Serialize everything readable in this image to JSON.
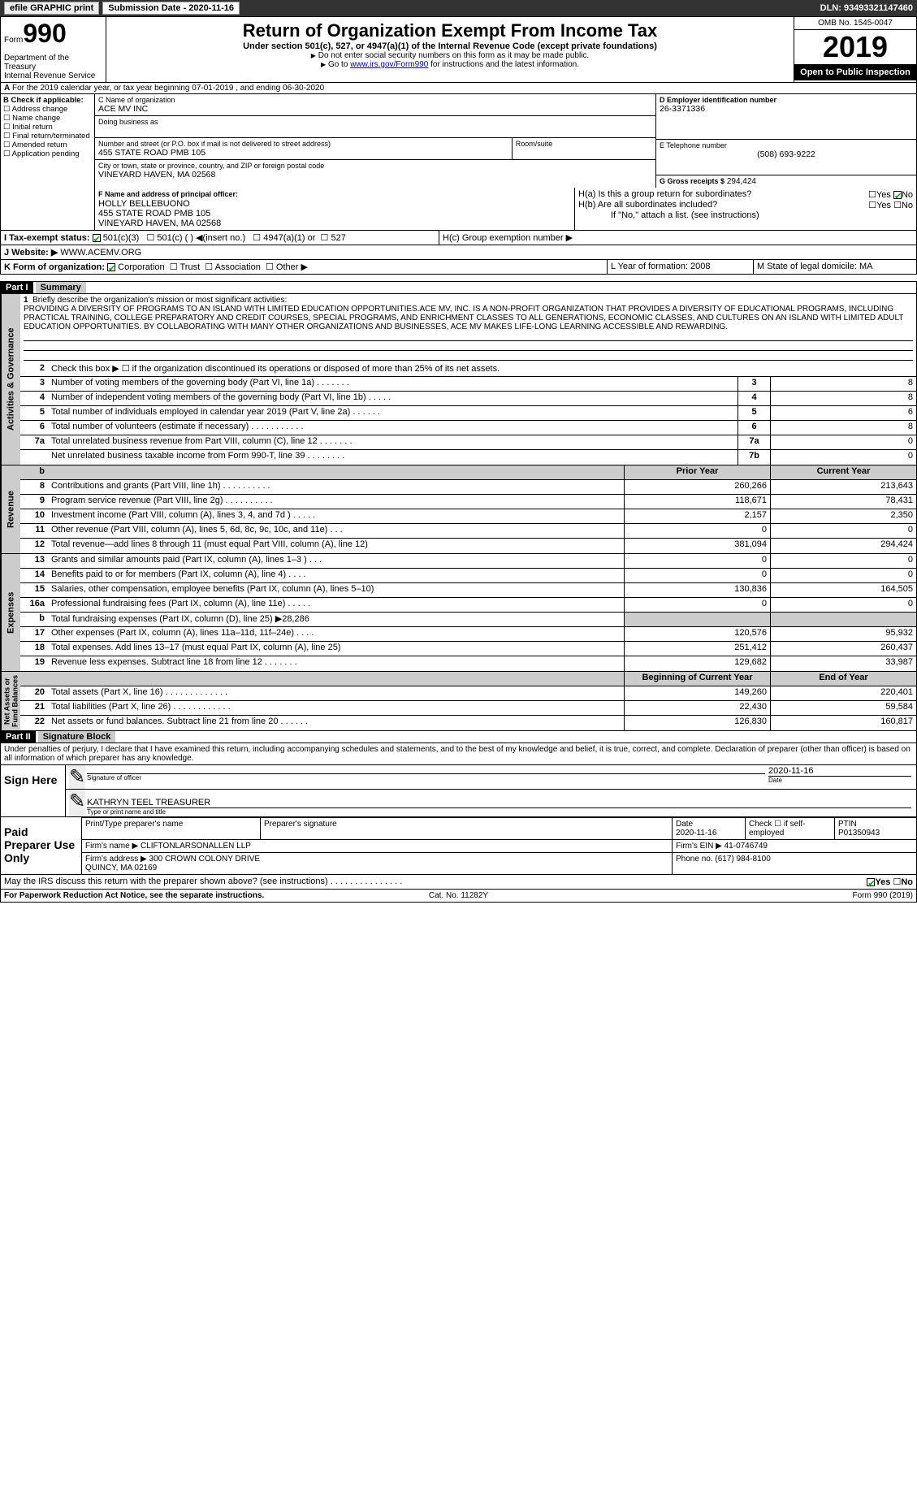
{
  "topbar": {
    "efile_btn": "efile GRAPHIC print",
    "submission": "Submission Date - 2020-11-16",
    "dln": "DLN: 93493321147460"
  },
  "header": {
    "form_small": "Form",
    "form_num": "990",
    "dept": "Department of the Treasury\nInternal Revenue Service",
    "title": "Return of Organization Exempt From Income Tax",
    "subtitle": "Under section 501(c), 527, or 4947(a)(1) of the Internal Revenue Code (except private foundations)",
    "note1": "Do not enter social security numbers on this form as it may be made public.",
    "note2_pre": "Go to ",
    "note2_link": "www.irs.gov/Form990",
    "note2_post": " for instructions and the latest information.",
    "omb": "OMB No. 1545-0047",
    "year": "2019",
    "inspect": "Open to Public Inspection"
  },
  "rowA": "For the 2019 calendar year, or tax year beginning 07-01-2019   , and ending 06-30-2020",
  "colB": {
    "title": "B Check if applicable:",
    "i1": "Address change",
    "i2": "Name change",
    "i3": "Initial return",
    "i4": "Final return/terminated",
    "i5": "Amended return",
    "i6": "Application pending"
  },
  "colC": {
    "name_lbl": "C Name of organization",
    "name": "ACE MV INC",
    "dba_lbl": "Doing business as",
    "addr_lbl": "Number and street (or P.O. box if mail is not delivered to street address)",
    "room_lbl": "Room/suite",
    "addr": "455 STATE ROAD PMB 105",
    "city_lbl": "City or town, state or province, country, and ZIP or foreign postal code",
    "city": "VINEYARD HAVEN, MA  02568",
    "officer_lbl": "F Name and address of principal officer:",
    "officer": "HOLLY BELLEBUONO\n455 STATE ROAD PMB 105\nVINEYARD HAVEN, MA  02568"
  },
  "colD": {
    "ein_lbl": "D Employer identification number",
    "ein": "26-3371336",
    "tel_lbl": "E Telephone number",
    "tel": "(508) 693-9222",
    "gross_lbl": "G Gross receipts $",
    "gross": "294,424"
  },
  "rightH": {
    "ha": "H(a)  Is this a group return for subordinates?",
    "hb": "H(b)  Are all subordinates included?",
    "hb_note": "If \"No,\" attach a list. (see instructions)",
    "hc": "H(c)  Group exemption number ▶",
    "yes": "Yes",
    "no": "No"
  },
  "rowI": {
    "label": "I  Tax-exempt status:",
    "o1": "501(c)(3)",
    "o2": "501(c) (  ) ◀(insert no.)",
    "o3": "4947(a)(1) or",
    "o4": "527"
  },
  "rowJ": {
    "label": "J  Website: ▶",
    "val": "WWW.ACEMV.ORG"
  },
  "rowK": {
    "label": "K Form of organization:",
    "o1": "Corporation",
    "o2": "Trust",
    "o3": "Association",
    "o4": "Other ▶",
    "L": "L Year of formation: 2008",
    "M": "M State of legal domicile: MA"
  },
  "part1": {
    "hdr": "Part I",
    "title": "Summary"
  },
  "mission_lbl": "Briefly describe the organization's mission or most significant activities:",
  "mission": "PROVIDING A DIVERSITY OF PROGRAMS TO AN ISLAND WITH LIMITED EDUCATION OPPORTUNITIES.ACE MV, INC. IS A NON-PROFIT ORGANIZATION THAT PROVIDES A DIVERSITY OF EDUCATIONAL PROGRAMS, INCLUDING PRACTICAL TRAINING, COLLEGE PREPARATORY AND CREDIT COURSES, SPECIAL PROGRAMS, AND ENRICHMENT CLASSES TO ALL GENERATIONS, ECONOMIC CLASSES, AND CULTURES ON AN ISLAND WITH LIMITED ADULT EDUCATION OPPORTUNITIES. BY COLLABORATING WITH MANY OTHER ORGANIZATIONS AND BUSINESSES, ACE MV MAKES LIFE-LONG LEARNING ACCESSIBLE AND REWARDING.",
  "sideA": "Activities & Governance",
  "sideR": "Revenue",
  "sideE": "Expenses",
  "sideN": "Net Assets or\nFund Balances",
  "line2": "Check this box ▶ ☐ if the organization discontinued its operations or disposed of more than 25% of its net assets.",
  "lines_gov": [
    {
      "n": "3",
      "t": "Number of voting members of the governing body (Part VI, line 1a)  .  .  .  .  .  .  .",
      "c": "3",
      "v": "8"
    },
    {
      "n": "4",
      "t": "Number of independent voting members of the governing body (Part VI, line 1b)  .  .  .  .  .",
      "c": "4",
      "v": "8"
    },
    {
      "n": "5",
      "t": "Total number of individuals employed in calendar year 2019 (Part V, line 2a)  .  .  .  .  .  .",
      "c": "5",
      "v": "6"
    },
    {
      "n": "6",
      "t": "Total number of volunteers (estimate if necessary)  .  .  .  .  .  .  .  .  .  .  .",
      "c": "6",
      "v": "8"
    },
    {
      "n": "7a",
      "t": "Total unrelated business revenue from Part VIII, column (C), line 12  .  .  .  .  .  .  .",
      "c": "7a",
      "v": "0"
    },
    {
      "n": " ",
      "t": "Net unrelated business taxable income from Form 990-T, line 39  .  .  .  .  .  .  .  .",
      "c": "7b",
      "v": "0"
    }
  ],
  "hdr_prior": "Prior Year",
  "hdr_curr": "Current Year",
  "lines_rev": [
    {
      "n": "8",
      "t": "Contributions and grants (Part VIII, line 1h)  .  .  .  .  .  .  .  .  .  .",
      "p": "260,266",
      "c": "213,643"
    },
    {
      "n": "9",
      "t": "Program service revenue (Part VIII, line 2g)  .  .  .  .  .  .  .  .  .  .",
      "p": "118,671",
      "c": "78,431"
    },
    {
      "n": "10",
      "t": "Investment income (Part VIII, column (A), lines 3, 4, and 7d )  .  .  .  .  .",
      "p": "2,157",
      "c": "2,350"
    },
    {
      "n": "11",
      "t": "Other revenue (Part VIII, column (A), lines 5, 6d, 8c, 9c, 10c, and 11e)  .  .  .",
      "p": "0",
      "c": "0"
    },
    {
      "n": "12",
      "t": "Total revenue—add lines 8 through 11 (must equal Part VIII, column (A), line 12)",
      "p": "381,094",
      "c": "294,424"
    }
  ],
  "lines_exp": [
    {
      "n": "13",
      "t": "Grants and similar amounts paid (Part IX, column (A), lines 1–3 )  .  .  .",
      "p": "0",
      "c": "0"
    },
    {
      "n": "14",
      "t": "Benefits paid to or for members (Part IX, column (A), line 4)  .  .  .  .",
      "p": "0",
      "c": "0"
    },
    {
      "n": "15",
      "t": "Salaries, other compensation, employee benefits (Part IX, column (A), lines 5–10)",
      "p": "130,836",
      "c": "164,505"
    },
    {
      "n": "16a",
      "t": "Professional fundraising fees (Part IX, column (A), line 11e)  .  .  .  .  .",
      "p": "0",
      "c": "0"
    },
    {
      "n": "b",
      "t": "Total fundraising expenses (Part IX, column (D), line 25) ▶28,286",
      "p": "",
      "c": "",
      "shade": true
    },
    {
      "n": "17",
      "t": "Other expenses (Part IX, column (A), lines 11a–11d, 11f–24e)  .  .  .  .",
      "p": "120,576",
      "c": "95,932"
    },
    {
      "n": "18",
      "t": "Total expenses. Add lines 13–17 (must equal Part IX, column (A), line 25)",
      "p": "251,412",
      "c": "260,437"
    },
    {
      "n": "19",
      "t": "Revenue less expenses. Subtract line 18 from line 12  .  .  .  .  .  .  .",
      "p": "129,682",
      "c": "33,987"
    }
  ],
  "hdr_beg": "Beginning of Current Year",
  "hdr_end": "End of Year",
  "lines_net": [
    {
      "n": "20",
      "t": "Total assets (Part X, line 16)  .  .  .  .  .  .  .  .  .  .  .  .  .",
      "p": "149,260",
      "c": "220,401"
    },
    {
      "n": "21",
      "t": "Total liabilities (Part X, line 26)  .  .  .  .  .  .  .  .  .  .  .  .",
      "p": "22,430",
      "c": "59,584"
    },
    {
      "n": "22",
      "t": "Net assets or fund balances. Subtract line 21 from line 20  .  .  .  .  .  .",
      "p": "126,830",
      "c": "160,817"
    }
  ],
  "part2": {
    "hdr": "Part II",
    "title": "Signature Block"
  },
  "sig": {
    "intro": "Under penalties of perjury, I declare that I have examined this return, including accompanying schedules and statements, and to the best of my knowledge and belief, it is true, correct, and complete. Declaration of preparer (other than officer) is based on all information of which preparer has any knowledge.",
    "sign_here": "Sign Here",
    "sig_officer": "Signature of officer",
    "date": "Date",
    "date_val": "2020-11-16",
    "name": "KATHRYN TEEL  TREASURER",
    "name_lbl": "Type or print name and title"
  },
  "paid": {
    "title": "Paid Preparer Use Only",
    "h1": "Print/Type preparer's name",
    "h2": "Preparer's signature",
    "h3": "Date",
    "h3v": "2020-11-16",
    "h4": "Check ☐ if self-employed",
    "h5": "PTIN",
    "h5v": "P01350943",
    "firm_lbl": "Firm's name   ▶",
    "firm": "CLIFTONLARSONALLEN LLP",
    "ein_lbl": "Firm's EIN ▶",
    "ein": "41-0746749",
    "addr_lbl": "Firm's address ▶",
    "addr": "300 CROWN COLONY DRIVE\nQUINCY, MA  02169",
    "phone_lbl": "Phone no.",
    "phone": "(617) 984-8100"
  },
  "discuss": "May the IRS discuss this return with the preparer shown above? (see instructions)  .  .  .  .  .  .  .  .  .  .  .  .  .  .  .",
  "discuss_yes": "Yes",
  "discuss_no": "No",
  "foot": {
    "pra": "For Paperwork Reduction Act Notice, see the separate instructions.",
    "cat": "Cat. No. 11282Y",
    "form": "Form 990 (2019)"
  }
}
